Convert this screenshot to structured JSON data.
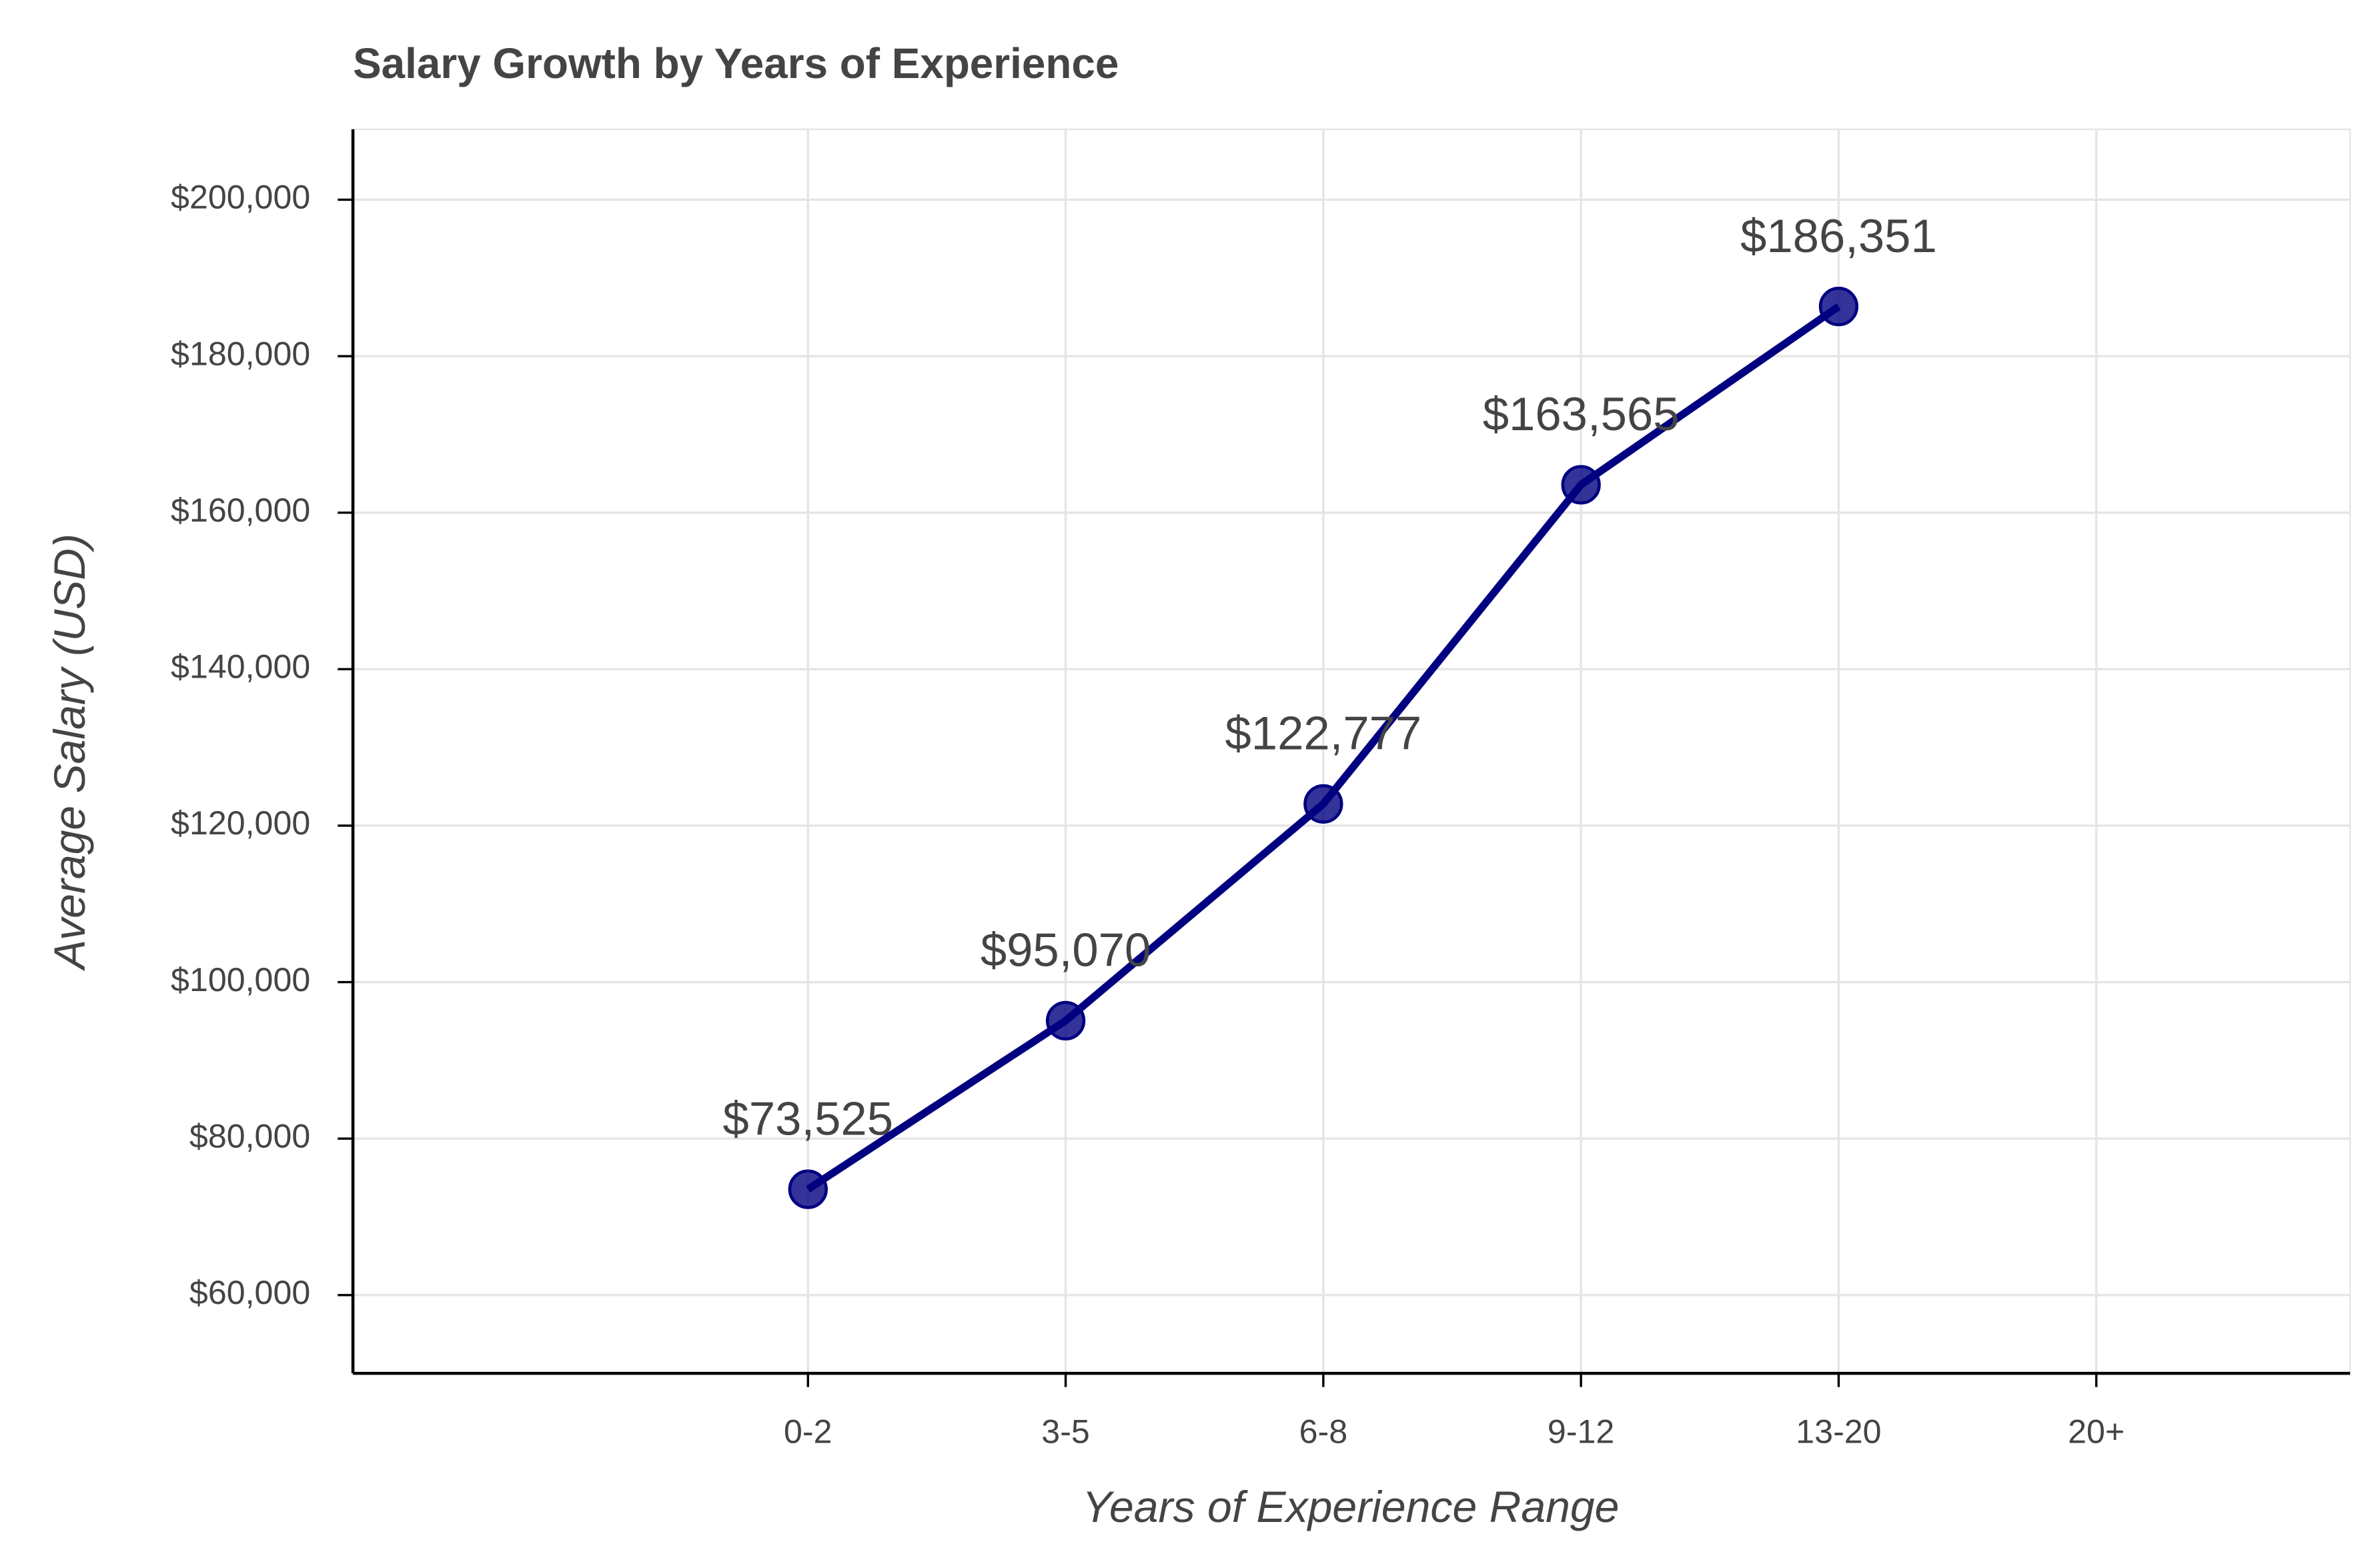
{
  "chart_data": {
    "type": "line",
    "title": "Salary Growth by Years of Experience",
    "x_label": "Years of Experience Range",
    "y_label": "Average Salary (USD)",
    "categories": [
      "0-2",
      "3-5",
      "6-8",
      "9-12",
      "13-20",
      "20+"
    ],
    "series": [
      {
        "name": "Average Salary",
        "color": "#000080",
        "values": [
          73525,
          95070,
          122777,
          163565,
          186351,
          null
        ],
        "value_labels": [
          "$73,525",
          "$95,070",
          "$122,777",
          "$163,565",
          "$186,351",
          null
        ]
      }
    ],
    "ylim": [
      50000,
      209000
    ],
    "yticks": [
      {
        "value": 60000,
        "label": "$60,000"
      },
      {
        "value": 80000,
        "label": "$80,000"
      },
      {
        "value": 100000,
        "label": "$100,000"
      },
      {
        "value": 120000,
        "label": "$120,000"
      },
      {
        "value": 140000,
        "label": "$140,000"
      },
      {
        "value": 160000,
        "label": "$160,000"
      },
      {
        "value": 180000,
        "label": "$180,000"
      },
      {
        "value": 200000,
        "label": "$200,000"
      }
    ],
    "grid": true
  }
}
